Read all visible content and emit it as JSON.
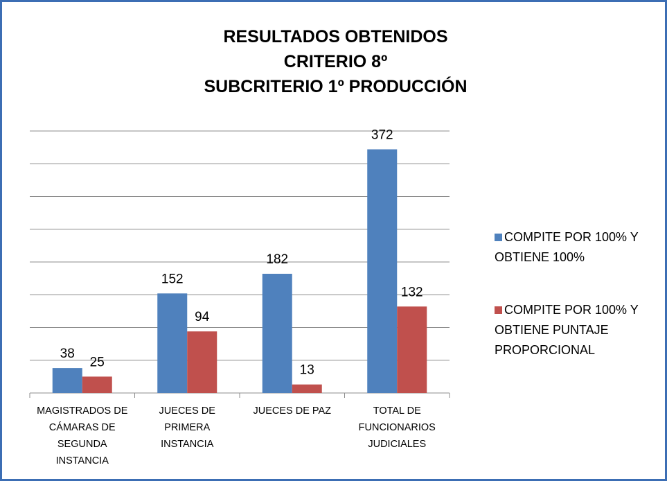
{
  "chart_data": {
    "type": "bar",
    "title": "RESULTADOS OBTENIDOS\nCRITERIO 8º\nSUBCRITERIO 1º PRODUCCIÓN",
    "categories": [
      "MAGISTRADOS DE CÁMARAS DE SEGUNDA INSTANCIA",
      "JUECES DE PRIMERA INSTANCIA",
      "JUECES DE PAZ",
      "TOTAL DE FUNCIONARIOS JUDICIALES"
    ],
    "series": [
      {
        "name": "COMPITE POR 100% Y OBTIENE 100%",
        "color": "#4f81bd",
        "values": [
          38,
          152,
          182,
          372
        ]
      },
      {
        "name": "COMPITE POR 100% Y OBTIENE PUNTAJE PROPORCIONAL",
        "color": "#c0504d",
        "values": [
          25,
          94,
          13,
          132
        ]
      }
    ],
    "ylim": [
      0,
      400
    ],
    "yticks": [
      0,
      50,
      100,
      150,
      200,
      250,
      300,
      350,
      400
    ],
    "grid": true,
    "legend": "right"
  }
}
